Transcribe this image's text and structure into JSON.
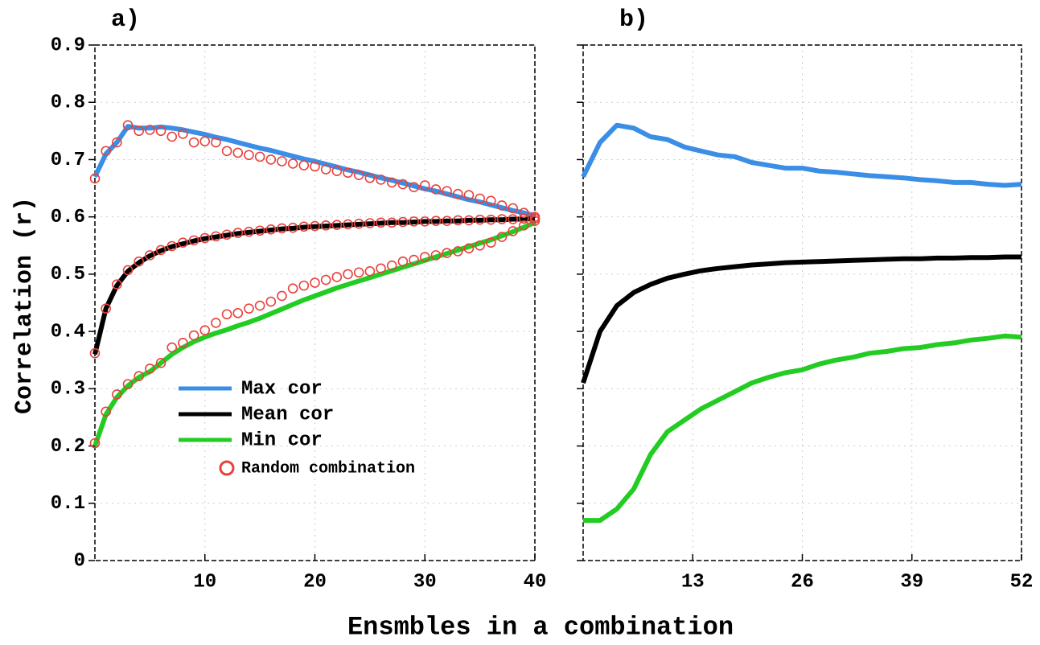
{
  "ylabel": "Correlation (r)",
  "xlabel": "Ensmbles in a combination",
  "chart_data": [
    {
      "type": "line",
      "title": "a)",
      "x": [
        0,
        1,
        2,
        3,
        4,
        5,
        6,
        7,
        8,
        9,
        10,
        11,
        12,
        13,
        14,
        15,
        16,
        17,
        18,
        19,
        20,
        21,
        22,
        23,
        24,
        25,
        26,
        27,
        28,
        29,
        30,
        31,
        32,
        33,
        34,
        35,
        36,
        37,
        38,
        39,
        40
      ],
      "xlim": [
        0,
        40
      ],
      "xticks": [
        10,
        20,
        30,
        40
      ],
      "ylim": [
        0,
        0.9
      ],
      "yticks": [
        0,
        0.1,
        0.2,
        0.3,
        0.4,
        0.5,
        0.6,
        0.7,
        0.8,
        0.9
      ],
      "grid": true,
      "series": [
        {
          "name": "Max cor",
          "color": "#3a8ee6",
          "values": [
            0.67,
            0.71,
            0.73,
            0.758,
            0.755,
            0.755,
            0.757,
            0.755,
            0.752,
            0.748,
            0.744,
            0.739,
            0.735,
            0.73,
            0.725,
            0.72,
            0.716,
            0.711,
            0.706,
            0.701,
            0.697,
            0.692,
            0.687,
            0.682,
            0.678,
            0.673,
            0.668,
            0.664,
            0.659,
            0.654,
            0.649,
            0.645,
            0.64,
            0.635,
            0.63,
            0.626,
            0.621,
            0.616,
            0.611,
            0.607,
            0.602
          ]
        },
        {
          "name": "Mean cor",
          "color": "#000000",
          "values": [
            0.36,
            0.44,
            0.48,
            0.505,
            0.52,
            0.532,
            0.541,
            0.548,
            0.553,
            0.558,
            0.562,
            0.565,
            0.568,
            0.571,
            0.573,
            0.575,
            0.577,
            0.579,
            0.58,
            0.582,
            0.583,
            0.584,
            0.585,
            0.586,
            0.587,
            0.588,
            0.589,
            0.59,
            0.59,
            0.591,
            0.592,
            0.592,
            0.593,
            0.593,
            0.594,
            0.594,
            0.595,
            0.595,
            0.596,
            0.596,
            0.597
          ]
        },
        {
          "name": "Min cor",
          "color": "#22cc22",
          "values": [
            0.2,
            0.255,
            0.285,
            0.305,
            0.32,
            0.33,
            0.345,
            0.36,
            0.372,
            0.382,
            0.39,
            0.397,
            0.403,
            0.41,
            0.416,
            0.423,
            0.431,
            0.439,
            0.447,
            0.455,
            0.462,
            0.469,
            0.476,
            0.482,
            0.488,
            0.494,
            0.5,
            0.506,
            0.512,
            0.518,
            0.524,
            0.53,
            0.536,
            0.542,
            0.548,
            0.554,
            0.56,
            0.567,
            0.574,
            0.582,
            0.59
          ]
        }
      ],
      "random": {
        "name": "Random combination",
        "color": "#e8413c",
        "series": [
          {
            "values": [
              0.667,
              0.715,
              0.73,
              0.76,
              0.75,
              0.752,
              0.75,
              0.74,
              0.745,
              0.73,
              0.732,
              0.73,
              0.715,
              0.712,
              0.708,
              0.705,
              0.7,
              0.697,
              0.693,
              0.69,
              0.688,
              0.683,
              0.68,
              0.677,
              0.673,
              0.668,
              0.665,
              0.66,
              0.657,
              0.652,
              0.655,
              0.648,
              0.645,
              0.64,
              0.638,
              0.632,
              0.628,
              0.62,
              0.615,
              0.607,
              0.6
            ]
          },
          {
            "values": [
              0.362,
              0.44,
              0.482,
              0.507,
              0.522,
              0.533,
              0.542,
              0.549,
              0.555,
              0.559,
              0.563,
              0.566,
              0.569,
              0.572,
              0.574,
              0.576,
              0.578,
              0.58,
              0.581,
              0.583,
              0.584,
              0.585,
              0.586,
              0.587,
              0.588,
              0.589,
              0.59,
              0.59,
              0.591,
              0.592,
              0.592,
              0.593,
              0.593,
              0.594,
              0.594,
              0.595,
              0.595,
              0.596,
              0.596,
              0.597,
              0.597
            ]
          },
          {
            "values": [
              0.205,
              0.26,
              0.29,
              0.308,
              0.322,
              0.335,
              0.345,
              0.372,
              0.38,
              0.393,
              0.402,
              0.415,
              0.43,
              0.432,
              0.44,
              0.445,
              0.452,
              0.462,
              0.475,
              0.48,
              0.485,
              0.49,
              0.495,
              0.5,
              0.503,
              0.505,
              0.51,
              0.515,
              0.522,
              0.525,
              0.53,
              0.533,
              0.537,
              0.54,
              0.545,
              0.55,
              0.555,
              0.565,
              0.575,
              0.585,
              0.593
            ]
          }
        ]
      }
    },
    {
      "type": "line",
      "title": "b)",
      "x": [
        0,
        2,
        4,
        6,
        8,
        10,
        12,
        14,
        16,
        18,
        20,
        22,
        24,
        26,
        28,
        30,
        32,
        34,
        36,
        38,
        40,
        42,
        44,
        46,
        48,
        50,
        52
      ],
      "xlim": [
        0,
        52
      ],
      "xticks": [
        13,
        26,
        39,
        52
      ],
      "ylim": [
        0,
        0.9
      ],
      "yticks": [
        0,
        0.1,
        0.2,
        0.3,
        0.4,
        0.5,
        0.6,
        0.7,
        0.8,
        0.9
      ],
      "grid": true,
      "series": [
        {
          "color": "#3a8ee6",
          "values": [
            0.67,
            0.73,
            0.76,
            0.755,
            0.74,
            0.735,
            0.722,
            0.715,
            0.708,
            0.705,
            0.695,
            0.69,
            0.685,
            0.685,
            0.68,
            0.678,
            0.675,
            0.672,
            0.67,
            0.668,
            0.665,
            0.663,
            0.66,
            0.66,
            0.657,
            0.655,
            0.657
          ]
        },
        {
          "color": "#000000",
          "values": [
            0.31,
            0.4,
            0.445,
            0.468,
            0.482,
            0.493,
            0.5,
            0.506,
            0.51,
            0.513,
            0.516,
            0.518,
            0.52,
            0.521,
            0.522,
            0.523,
            0.524,
            0.525,
            0.526,
            0.527,
            0.527,
            0.528,
            0.528,
            0.529,
            0.529,
            0.53,
            0.53
          ]
        },
        {
          "color": "#22cc22",
          "values": [
            0.07,
            0.07,
            0.09,
            0.125,
            0.185,
            0.225,
            0.245,
            0.265,
            0.28,
            0.295,
            0.31,
            0.32,
            0.328,
            0.333,
            0.343,
            0.35,
            0.355,
            0.362,
            0.365,
            0.37,
            0.372,
            0.377,
            0.38,
            0.385,
            0.388,
            0.392,
            0.39
          ]
        }
      ]
    }
  ]
}
